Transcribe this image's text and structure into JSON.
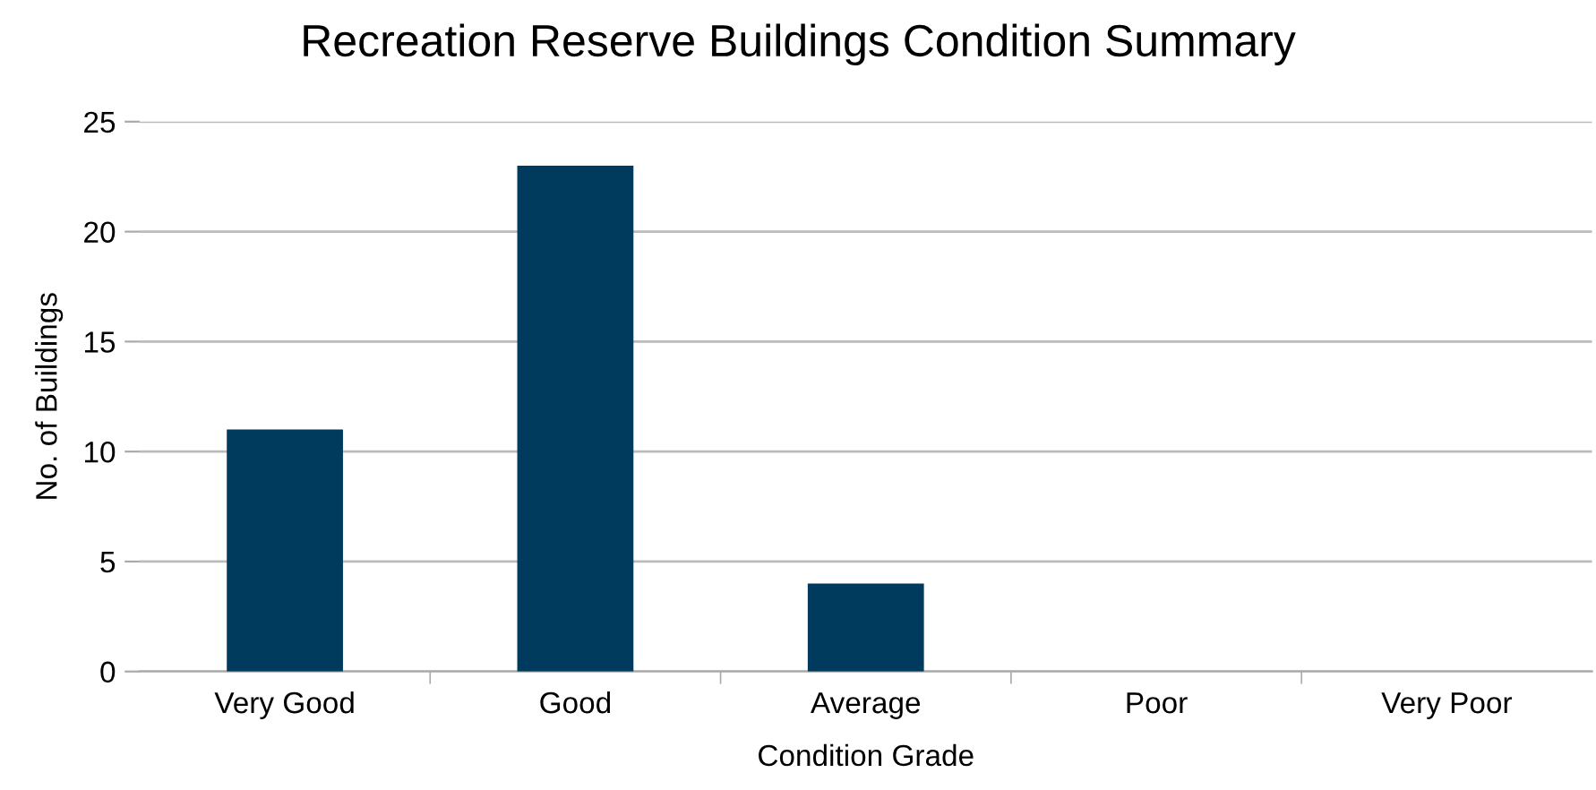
{
  "chart_data": {
    "type": "bar",
    "title": "Recreation Reserve Buildings Condition Summary",
    "xlabel": "Condition Grade",
    "ylabel": "No. of Buildings",
    "categories": [
      "Very Good",
      "Good",
      "Average",
      "Poor",
      "Very Poor"
    ],
    "values": [
      11,
      23,
      4,
      0,
      0
    ],
    "color": "#003a5c",
    "ylim": [
      0,
      25
    ],
    "yticks": [
      0,
      5,
      10,
      15,
      20,
      25
    ],
    "grid": "y",
    "legend": false
  }
}
